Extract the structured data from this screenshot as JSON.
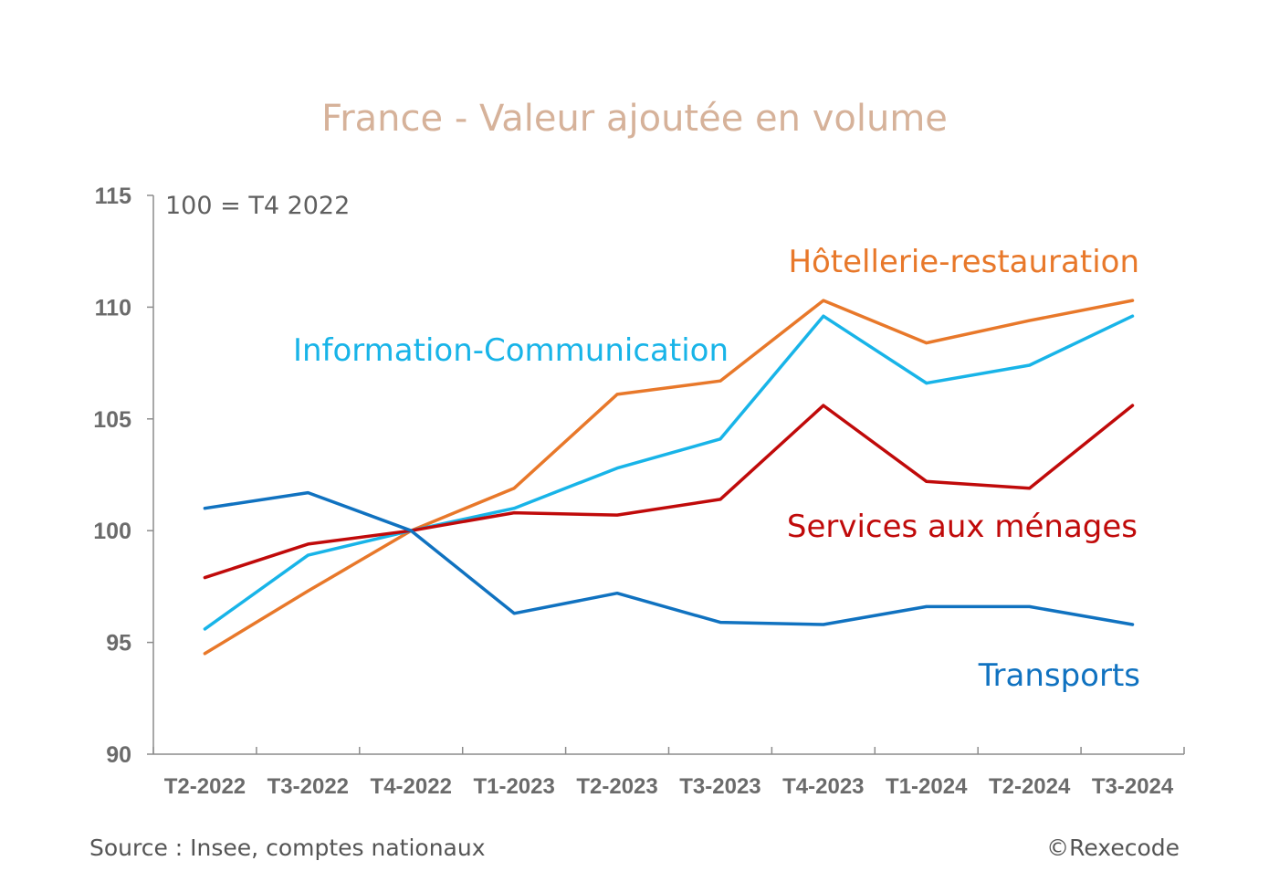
{
  "chart_data": {
    "type": "line",
    "title": "France - Valeur ajoutée en volume",
    "note": "100 = T4 2022",
    "categories": [
      "T2-2022",
      "T3-2022",
      "T4-2022",
      "T1-2023",
      "T2-2023",
      "T3-2023",
      "T4-2023",
      "T1-2024",
      "T2-2024",
      "T3-2024"
    ],
    "ylim": [
      90,
      115
    ],
    "yticks": [
      90,
      95,
      100,
      105,
      110,
      115
    ],
    "grid": false,
    "series": [
      {
        "name": "Hôtellerie-restauration",
        "color": "#e8782a",
        "values": [
          94.5,
          97.3,
          100.0,
          101.9,
          106.1,
          106.7,
          110.3,
          108.4,
          109.4,
          110.3
        ]
      },
      {
        "name": "Information-Communication",
        "color": "#18b4e8",
        "values": [
          95.6,
          98.9,
          100.0,
          101.0,
          102.8,
          104.1,
          109.6,
          106.6,
          107.4,
          109.6
        ]
      },
      {
        "name": "Services aux ménages",
        "color": "#c00a0a",
        "values": [
          97.9,
          99.4,
          100.0,
          100.8,
          100.7,
          101.4,
          105.6,
          102.2,
          101.9,
          105.6
        ]
      },
      {
        "name": "Transports",
        "color": "#1072c0",
        "values": [
          101.0,
          101.7,
          100.0,
          96.3,
          97.2,
          95.9,
          95.8,
          96.6,
          96.6,
          95.8
        ]
      }
    ]
  },
  "footer": {
    "source": "Source : Insee, comptes nationaux",
    "copyright": "©Rexecode"
  }
}
